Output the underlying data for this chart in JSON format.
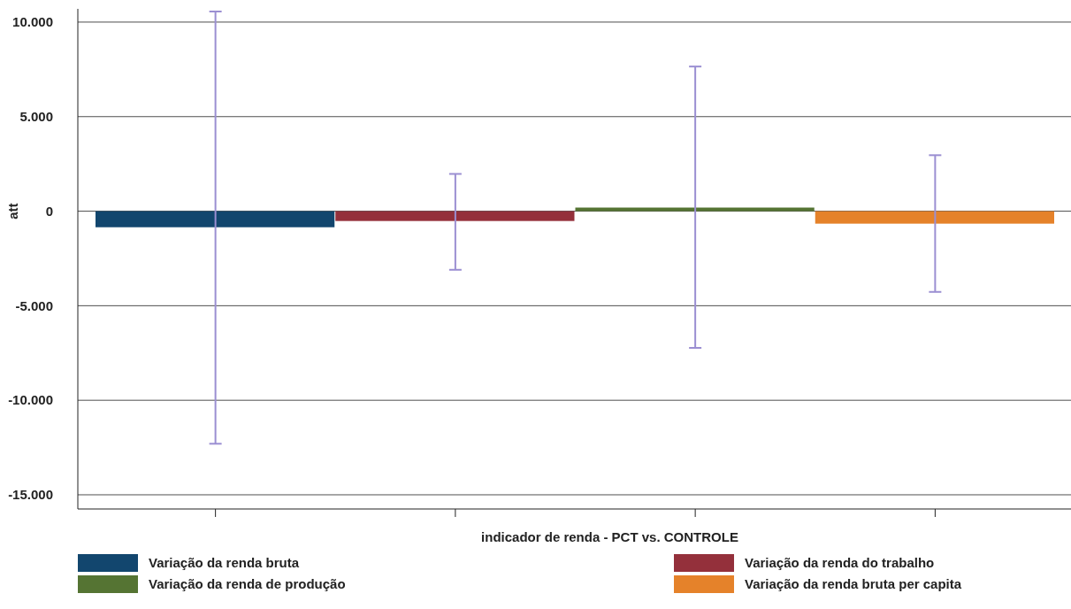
{
  "chart_data": {
    "type": "bar",
    "xlabel": "indicador de renda - PCT vs. CONTROLE",
    "ylabel": "att",
    "categories": [
      null,
      null,
      null,
      null
    ],
    "series": [
      {
        "name": "Variação da renda bruta",
        "color": "#12466e",
        "values": [
          -850,
          null,
          null,
          null
        ],
        "errors": [
          [
            -12300,
            10560
          ],
          null,
          null,
          null
        ]
      },
      {
        "name": "Variação da renda do trabalho",
        "color": "#94303b",
        "values": [
          null,
          -520,
          null,
          null
        ],
        "errors": [
          null,
          [
            -3100,
            1970
          ],
          null,
          null
        ]
      },
      {
        "name": "Variação da renda de produção",
        "color": "#557433",
        "values": [
          null,
          null,
          190,
          null
        ],
        "errors": [
          null,
          null,
          [
            -7230,
            7650
          ],
          null
        ]
      },
      {
        "name": "Variação da renda bruta per capita",
        "color": "#e5822a",
        "values": [
          null,
          null,
          null,
          -660
        ],
        "errors": [
          null,
          null,
          null,
          [
            -4270,
            2960
          ]
        ]
      }
    ],
    "ylim": [
      -15750,
      10700
    ],
    "yticks": [
      {
        "value": -15000,
        "label": "-15.000"
      },
      {
        "value": -10000,
        "label": "-10.000"
      },
      {
        "value": -5000,
        "label": "-5.000"
      },
      0,
      {
        "value": 5000,
        "label": "5.000"
      },
      {
        "value": 10000,
        "label": "10.000"
      }
    ],
    "grid": "y",
    "legend": "bottom"
  }
}
